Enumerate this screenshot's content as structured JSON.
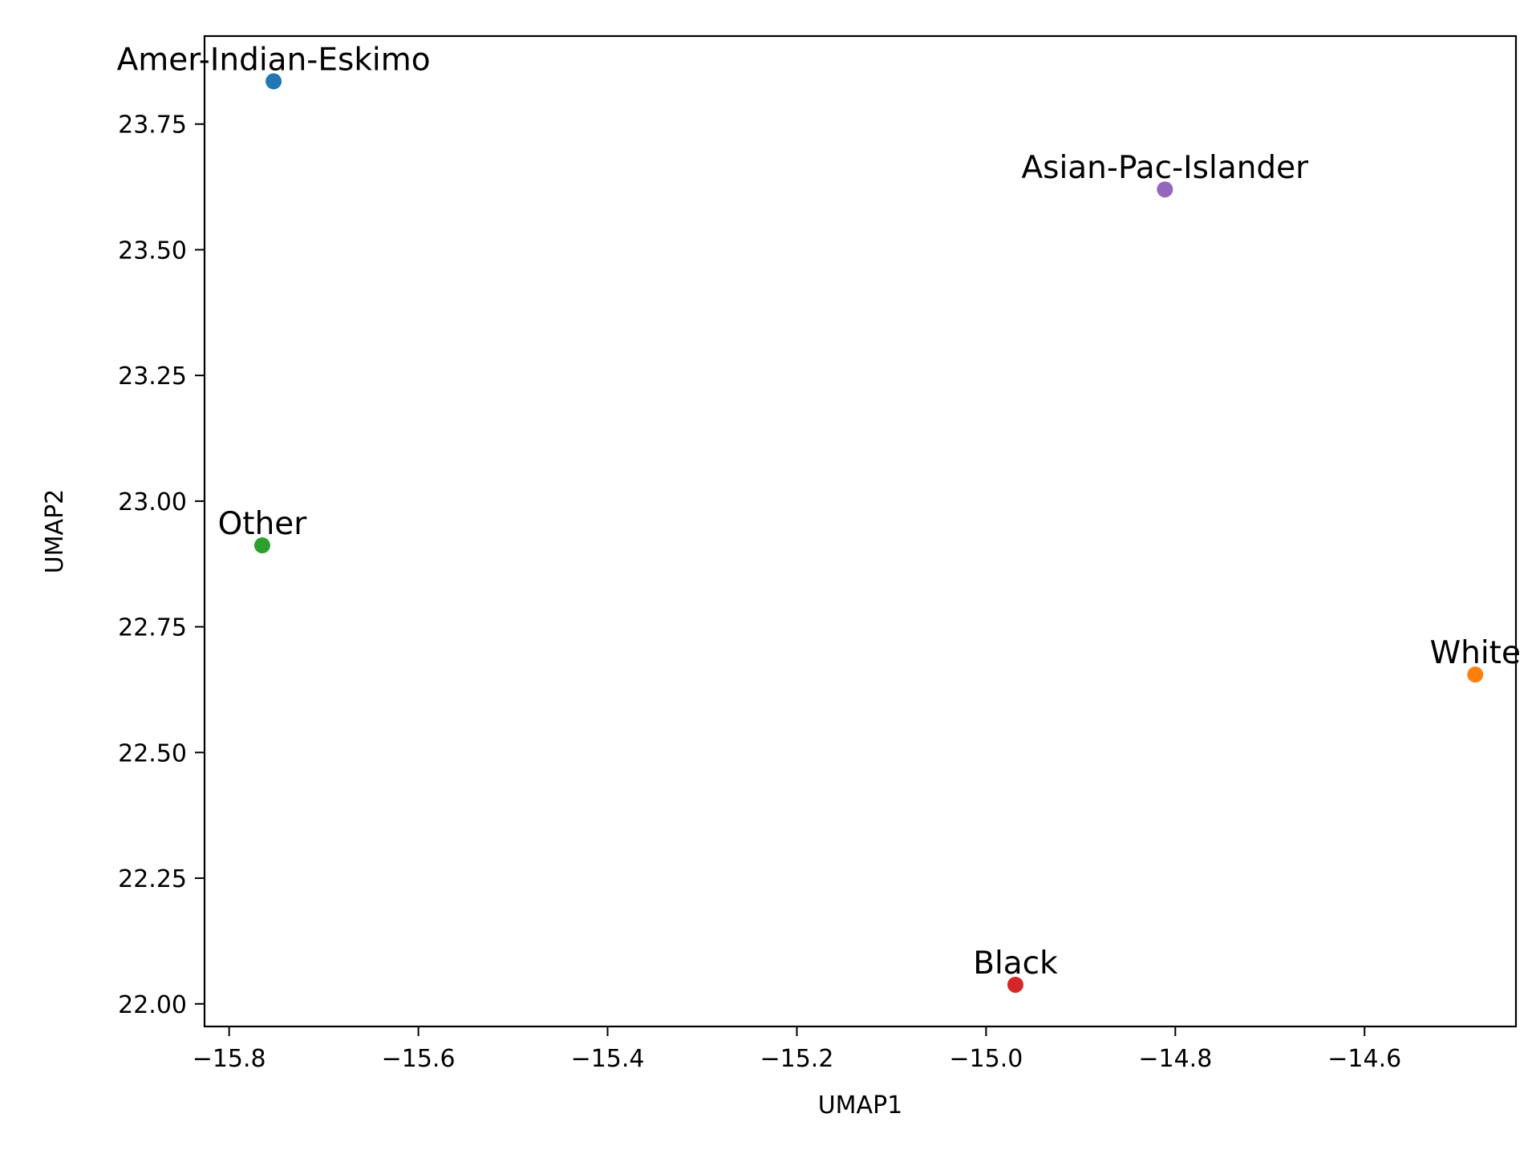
{
  "chart_data": {
    "type": "scatter",
    "title": "",
    "xlabel": "UMAP1",
    "ylabel": "UMAP2",
    "xlim": [
      -15.826,
      -14.44
    ],
    "ylim": [
      21.955,
      23.925
    ],
    "xticks": [
      -15.8,
      -15.6,
      -15.4,
      -15.2,
      -15.0,
      -14.8,
      -14.6
    ],
    "xtick_labels": [
      "−15.8",
      "−15.6",
      "−15.4",
      "−15.2",
      "−15.0",
      "−14.8",
      "−14.6"
    ],
    "yticks": [
      22.0,
      22.25,
      22.5,
      22.75,
      23.0,
      23.25,
      23.5,
      23.75
    ],
    "ytick_labels": [
      "22.00",
      "22.25",
      "22.50",
      "22.75",
      "23.00",
      "23.25",
      "23.50",
      "23.75"
    ],
    "grid": false,
    "legend": "none",
    "points": [
      {
        "label": "Amer-Indian-Eskimo",
        "x": -15.753,
        "y": 23.835,
        "color": "#1f77b4"
      },
      {
        "label": "White",
        "x": -14.483,
        "y": 22.655,
        "color": "#ff7f0e"
      },
      {
        "label": "Other",
        "x": -15.765,
        "y": 22.912,
        "color": "#2ca02c"
      },
      {
        "label": "Black",
        "x": -14.969,
        "y": 22.038,
        "color": "#d62728"
      },
      {
        "label": "Asian-Pac-Islander",
        "x": -14.811,
        "y": 23.62,
        "color": "#9467bd"
      }
    ]
  }
}
